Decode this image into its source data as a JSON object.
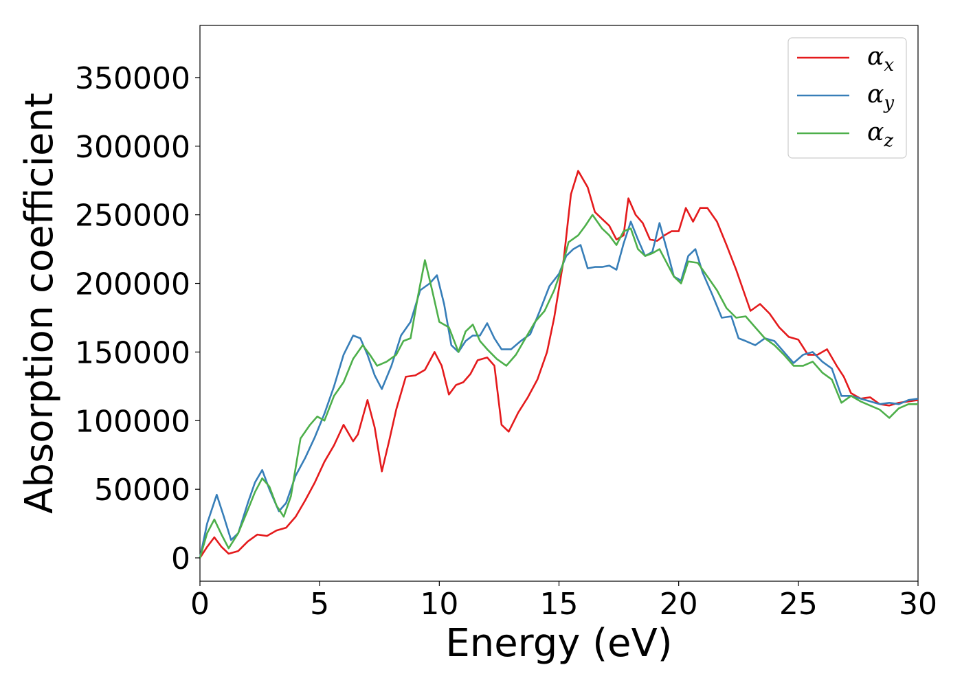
{
  "chart_data": {
    "type": "line",
    "title": "",
    "xlabel": "Energy (eV)",
    "ylabel": "Absorption coefficient",
    "xlim": [
      0,
      30
    ],
    "ylim": [
      -17000,
      388000
    ],
    "xticks": [
      "0",
      "5",
      "10",
      "15",
      "20",
      "25",
      "30"
    ],
    "xtick_values": [
      0,
      5,
      10,
      15,
      20,
      25,
      30
    ],
    "yticks": [
      "0",
      "50000",
      "100000",
      "150000",
      "200000",
      "250000",
      "300000",
      "350000"
    ],
    "ytick_values": [
      0,
      50000,
      100000,
      150000,
      200000,
      250000,
      300000,
      350000
    ],
    "grid": false,
    "legend_position": "top-right",
    "series": [
      {
        "name": "α_x",
        "legend_base": "α",
        "legend_sub": "x",
        "color": "#e41a1c",
        "points": [
          [
            0,
            0
          ],
          [
            0.3,
            8000
          ],
          [
            0.6,
            15000
          ],
          [
            0.9,
            8000
          ],
          [
            1.2,
            3000
          ],
          [
            1.6,
            5000
          ],
          [
            2.0,
            12000
          ],
          [
            2.4,
            17000
          ],
          [
            2.8,
            16000
          ],
          [
            3.2,
            20000
          ],
          [
            3.6,
            22000
          ],
          [
            4.0,
            30000
          ],
          [
            4.4,
            42000
          ],
          [
            4.8,
            55000
          ],
          [
            5.2,
            70000
          ],
          [
            5.6,
            82000
          ],
          [
            6.0,
            97000
          ],
          [
            6.4,
            85000
          ],
          [
            6.6,
            90000
          ],
          [
            7.0,
            115000
          ],
          [
            7.3,
            95000
          ],
          [
            7.6,
            63000
          ],
          [
            7.9,
            85000
          ],
          [
            8.2,
            108000
          ],
          [
            8.6,
            132000
          ],
          [
            9.0,
            133000
          ],
          [
            9.4,
            137000
          ],
          [
            9.8,
            150000
          ],
          [
            10.1,
            140000
          ],
          [
            10.4,
            119000
          ],
          [
            10.7,
            126000
          ],
          [
            11.0,
            128000
          ],
          [
            11.3,
            134000
          ],
          [
            11.6,
            144000
          ],
          [
            12.0,
            146000
          ],
          [
            12.3,
            140000
          ],
          [
            12.6,
            97000
          ],
          [
            12.9,
            92000
          ],
          [
            13.3,
            106000
          ],
          [
            13.7,
            117000
          ],
          [
            14.1,
            130000
          ],
          [
            14.5,
            150000
          ],
          [
            14.8,
            175000
          ],
          [
            15.2,
            218000
          ],
          [
            15.5,
            265000
          ],
          [
            15.8,
            282000
          ],
          [
            16.2,
            270000
          ],
          [
            16.5,
            252000
          ],
          [
            16.8,
            247000
          ],
          [
            17.1,
            242000
          ],
          [
            17.4,
            232000
          ],
          [
            17.7,
            235000
          ],
          [
            17.9,
            262000
          ],
          [
            18.2,
            250000
          ],
          [
            18.5,
            244000
          ],
          [
            18.8,
            232000
          ],
          [
            19.1,
            231000
          ],
          [
            19.4,
            235000
          ],
          [
            19.7,
            238000
          ],
          [
            20.0,
            238000
          ],
          [
            20.3,
            255000
          ],
          [
            20.6,
            245000
          ],
          [
            20.9,
            255000
          ],
          [
            21.2,
            255000
          ],
          [
            21.6,
            245000
          ],
          [
            22.0,
            228000
          ],
          [
            22.4,
            210000
          ],
          [
            22.8,
            190000
          ],
          [
            23.0,
            180000
          ],
          [
            23.4,
            185000
          ],
          [
            23.8,
            178000
          ],
          [
            24.2,
            168000
          ],
          [
            24.6,
            161000
          ],
          [
            25.0,
            159000
          ],
          [
            25.4,
            148000
          ],
          [
            25.8,
            148000
          ],
          [
            26.2,
            152000
          ],
          [
            26.6,
            140000
          ],
          [
            26.9,
            132000
          ],
          [
            27.2,
            120000
          ],
          [
            27.6,
            116000
          ],
          [
            28.0,
            117000
          ],
          [
            28.4,
            112000
          ],
          [
            28.8,
            111000
          ],
          [
            29.2,
            113000
          ],
          [
            29.6,
            114000
          ],
          [
            30,
            115000
          ]
        ]
      },
      {
        "name": "α_y",
        "legend_base": "α",
        "legend_sub": "y",
        "color": "#377eb8",
        "points": [
          [
            0,
            0
          ],
          [
            0.3,
            25000
          ],
          [
            0.7,
            46000
          ],
          [
            1.0,
            30000
          ],
          [
            1.3,
            13000
          ],
          [
            1.6,
            18000
          ],
          [
            2.0,
            40000
          ],
          [
            2.3,
            55000
          ],
          [
            2.6,
            64000
          ],
          [
            2.9,
            50000
          ],
          [
            3.3,
            34000
          ],
          [
            3.6,
            40000
          ],
          [
            4.0,
            60000
          ],
          [
            4.4,
            73000
          ],
          [
            4.8,
            88000
          ],
          [
            5.2,
            105000
          ],
          [
            5.6,
            125000
          ],
          [
            6.0,
            148000
          ],
          [
            6.4,
            162000
          ],
          [
            6.7,
            160000
          ],
          [
            7.0,
            148000
          ],
          [
            7.3,
            133000
          ],
          [
            7.6,
            123000
          ],
          [
            8.0,
            140000
          ],
          [
            8.4,
            162000
          ],
          [
            8.8,
            172000
          ],
          [
            9.2,
            195000
          ],
          [
            9.6,
            200000
          ],
          [
            9.9,
            206000
          ],
          [
            10.2,
            185000
          ],
          [
            10.5,
            155000
          ],
          [
            10.8,
            150000
          ],
          [
            11.1,
            158000
          ],
          [
            11.4,
            162000
          ],
          [
            11.7,
            162000
          ],
          [
            12.0,
            171000
          ],
          [
            12.3,
            160000
          ],
          [
            12.6,
            152000
          ],
          [
            13.0,
            152000
          ],
          [
            13.4,
            158000
          ],
          [
            13.8,
            163000
          ],
          [
            14.2,
            180000
          ],
          [
            14.6,
            198000
          ],
          [
            15.0,
            207000
          ],
          [
            15.3,
            220000
          ],
          [
            15.6,
            225000
          ],
          [
            15.9,
            228000
          ],
          [
            16.2,
            211000
          ],
          [
            16.5,
            212000
          ],
          [
            16.8,
            212000
          ],
          [
            17.1,
            213000
          ],
          [
            17.4,
            210000
          ],
          [
            17.7,
            229000
          ],
          [
            18.0,
            245000
          ],
          [
            18.3,
            232000
          ],
          [
            18.6,
            220000
          ],
          [
            18.9,
            223000
          ],
          [
            19.2,
            244000
          ],
          [
            19.5,
            225000
          ],
          [
            19.8,
            205000
          ],
          [
            20.1,
            202000
          ],
          [
            20.4,
            220000
          ],
          [
            20.7,
            225000
          ],
          [
            21.0,
            208000
          ],
          [
            21.4,
            192000
          ],
          [
            21.8,
            175000
          ],
          [
            22.2,
            176000
          ],
          [
            22.5,
            160000
          ],
          [
            22.8,
            158000
          ],
          [
            23.2,
            155000
          ],
          [
            23.6,
            160000
          ],
          [
            24.0,
            158000
          ],
          [
            24.4,
            150000
          ],
          [
            24.8,
            142000
          ],
          [
            25.2,
            148000
          ],
          [
            25.6,
            150000
          ],
          [
            26.0,
            143000
          ],
          [
            26.4,
            138000
          ],
          [
            26.8,
            118000
          ],
          [
            27.2,
            118000
          ],
          [
            27.6,
            116000
          ],
          [
            28.0,
            114000
          ],
          [
            28.4,
            112000
          ],
          [
            28.8,
            113000
          ],
          [
            29.2,
            112000
          ],
          [
            29.6,
            115000
          ],
          [
            30,
            116000
          ]
        ]
      },
      {
        "name": "α_z",
        "legend_base": "α",
        "legend_sub": "z",
        "color": "#4daf4a",
        "points": [
          [
            0,
            0
          ],
          [
            0.3,
            18000
          ],
          [
            0.6,
            28000
          ],
          [
            0.9,
            17000
          ],
          [
            1.2,
            7000
          ],
          [
            1.6,
            18000
          ],
          [
            2.0,
            35000
          ],
          [
            2.3,
            48000
          ],
          [
            2.6,
            58000
          ],
          [
            2.9,
            52000
          ],
          [
            3.2,
            38000
          ],
          [
            3.5,
            30000
          ],
          [
            3.8,
            45000
          ],
          [
            4.2,
            87000
          ],
          [
            4.6,
            97000
          ],
          [
            4.9,
            103000
          ],
          [
            5.2,
            100000
          ],
          [
            5.6,
            118000
          ],
          [
            6.0,
            128000
          ],
          [
            6.4,
            145000
          ],
          [
            6.8,
            155000
          ],
          [
            7.1,
            148000
          ],
          [
            7.4,
            140000
          ],
          [
            7.8,
            143000
          ],
          [
            8.2,
            148000
          ],
          [
            8.5,
            158000
          ],
          [
            8.8,
            160000
          ],
          [
            9.1,
            190000
          ],
          [
            9.4,
            217000
          ],
          [
            9.7,
            195000
          ],
          [
            10.0,
            172000
          ],
          [
            10.4,
            168000
          ],
          [
            10.8,
            150000
          ],
          [
            11.1,
            165000
          ],
          [
            11.4,
            170000
          ],
          [
            11.7,
            158000
          ],
          [
            12.0,
            152000
          ],
          [
            12.4,
            145000
          ],
          [
            12.8,
            140000
          ],
          [
            13.2,
            148000
          ],
          [
            13.6,
            160000
          ],
          [
            14.0,
            172000
          ],
          [
            14.4,
            180000
          ],
          [
            14.8,
            195000
          ],
          [
            15.1,
            210000
          ],
          [
            15.4,
            230000
          ],
          [
            15.8,
            235000
          ],
          [
            16.1,
            242000
          ],
          [
            16.4,
            250000
          ],
          [
            16.8,
            240000
          ],
          [
            17.1,
            235000
          ],
          [
            17.4,
            228000
          ],
          [
            17.7,
            238000
          ],
          [
            18.0,
            240000
          ],
          [
            18.3,
            225000
          ],
          [
            18.6,
            220000
          ],
          [
            18.9,
            222000
          ],
          [
            19.2,
            225000
          ],
          [
            19.5,
            215000
          ],
          [
            19.8,
            205000
          ],
          [
            20.1,
            200000
          ],
          [
            20.4,
            216000
          ],
          [
            20.8,
            215000
          ],
          [
            21.2,
            205000
          ],
          [
            21.6,
            195000
          ],
          [
            22.0,
            182000
          ],
          [
            22.4,
            175000
          ],
          [
            22.8,
            176000
          ],
          [
            23.2,
            168000
          ],
          [
            23.6,
            160000
          ],
          [
            24.0,
            155000
          ],
          [
            24.4,
            148000
          ],
          [
            24.8,
            140000
          ],
          [
            25.2,
            140000
          ],
          [
            25.6,
            143000
          ],
          [
            26.0,
            135000
          ],
          [
            26.4,
            130000
          ],
          [
            26.8,
            113000
          ],
          [
            27.2,
            118000
          ],
          [
            27.6,
            114000
          ],
          [
            28.0,
            111000
          ],
          [
            28.4,
            108000
          ],
          [
            28.8,
            102000
          ],
          [
            29.2,
            109000
          ],
          [
            29.6,
            112000
          ],
          [
            30,
            112000
          ]
        ]
      }
    ]
  }
}
